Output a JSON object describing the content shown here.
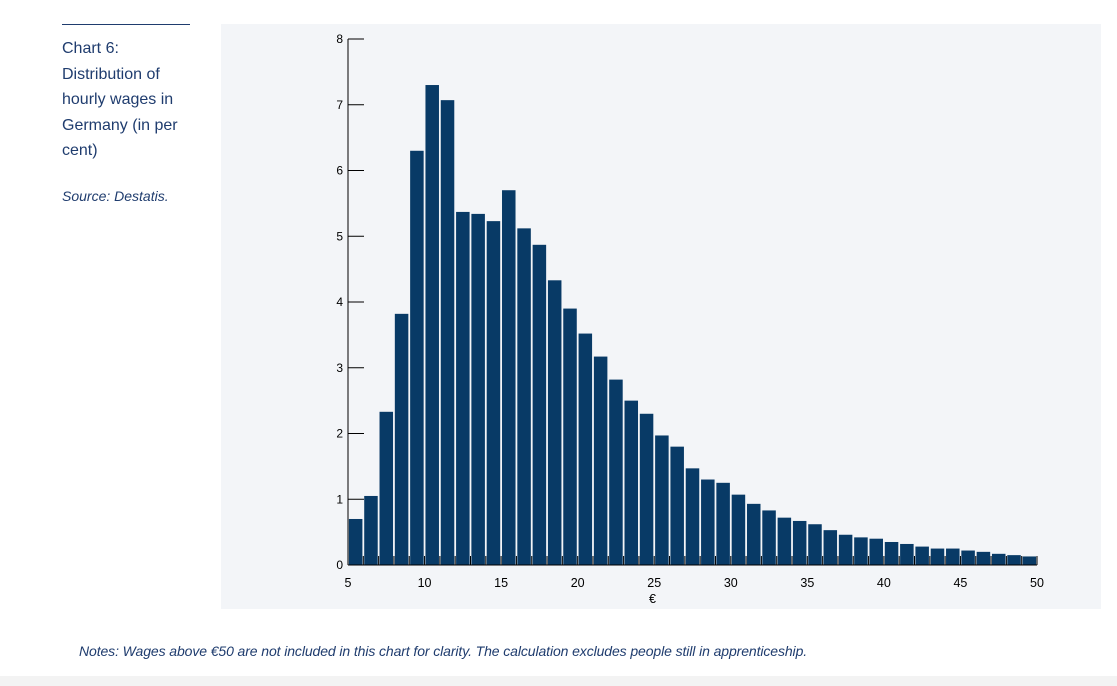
{
  "sidebar": {
    "title": "Chart 6: Distribution of hourly wages in Germany (in per cent)",
    "source": "Source: Destatis."
  },
  "notes": "Notes: Wages above €50 are not included in this chart for clarity. The calculation excludes people still in apprenticeship.",
  "colors": {
    "bar": "#083a66",
    "text": "#1f3c6e",
    "panel": "#f3f5f8",
    "axis": "#000000"
  },
  "chart_data": {
    "type": "bar",
    "title": "",
    "xlabel": "€",
    "ylabel": "",
    "xlim": [
      5,
      50
    ],
    "ylim": [
      0,
      8
    ],
    "y_ticks": [
      0,
      1,
      2,
      3,
      4,
      5,
      6,
      7,
      8
    ],
    "x_ticks": [
      5,
      10,
      15,
      20,
      25,
      30,
      35,
      40,
      45,
      50
    ],
    "bin_width": 1,
    "bin_starts": [
      5,
      6,
      7,
      8,
      9,
      10,
      11,
      12,
      13,
      14,
      15,
      16,
      17,
      18,
      19,
      20,
      21,
      22,
      23,
      24,
      25,
      26,
      27,
      28,
      29,
      30,
      31,
      32,
      33,
      34,
      35,
      36,
      37,
      38,
      39,
      40,
      41,
      42,
      43,
      44,
      45,
      46,
      47,
      48,
      49
    ],
    "values": [
      0.7,
      1.05,
      2.33,
      3.82,
      6.3,
      7.3,
      7.07,
      5.37,
      5.34,
      5.23,
      5.7,
      5.12,
      4.87,
      4.33,
      3.9,
      3.52,
      3.17,
      2.82,
      2.5,
      2.3,
      1.97,
      1.8,
      1.47,
      1.3,
      1.25,
      1.07,
      0.93,
      0.83,
      0.72,
      0.67,
      0.62,
      0.53,
      0.46,
      0.42,
      0.4,
      0.35,
      0.32,
      0.28,
      0.25,
      0.25,
      0.22,
      0.2,
      0.17,
      0.15,
      0.13
    ],
    "grid": false,
    "legend": "none"
  }
}
